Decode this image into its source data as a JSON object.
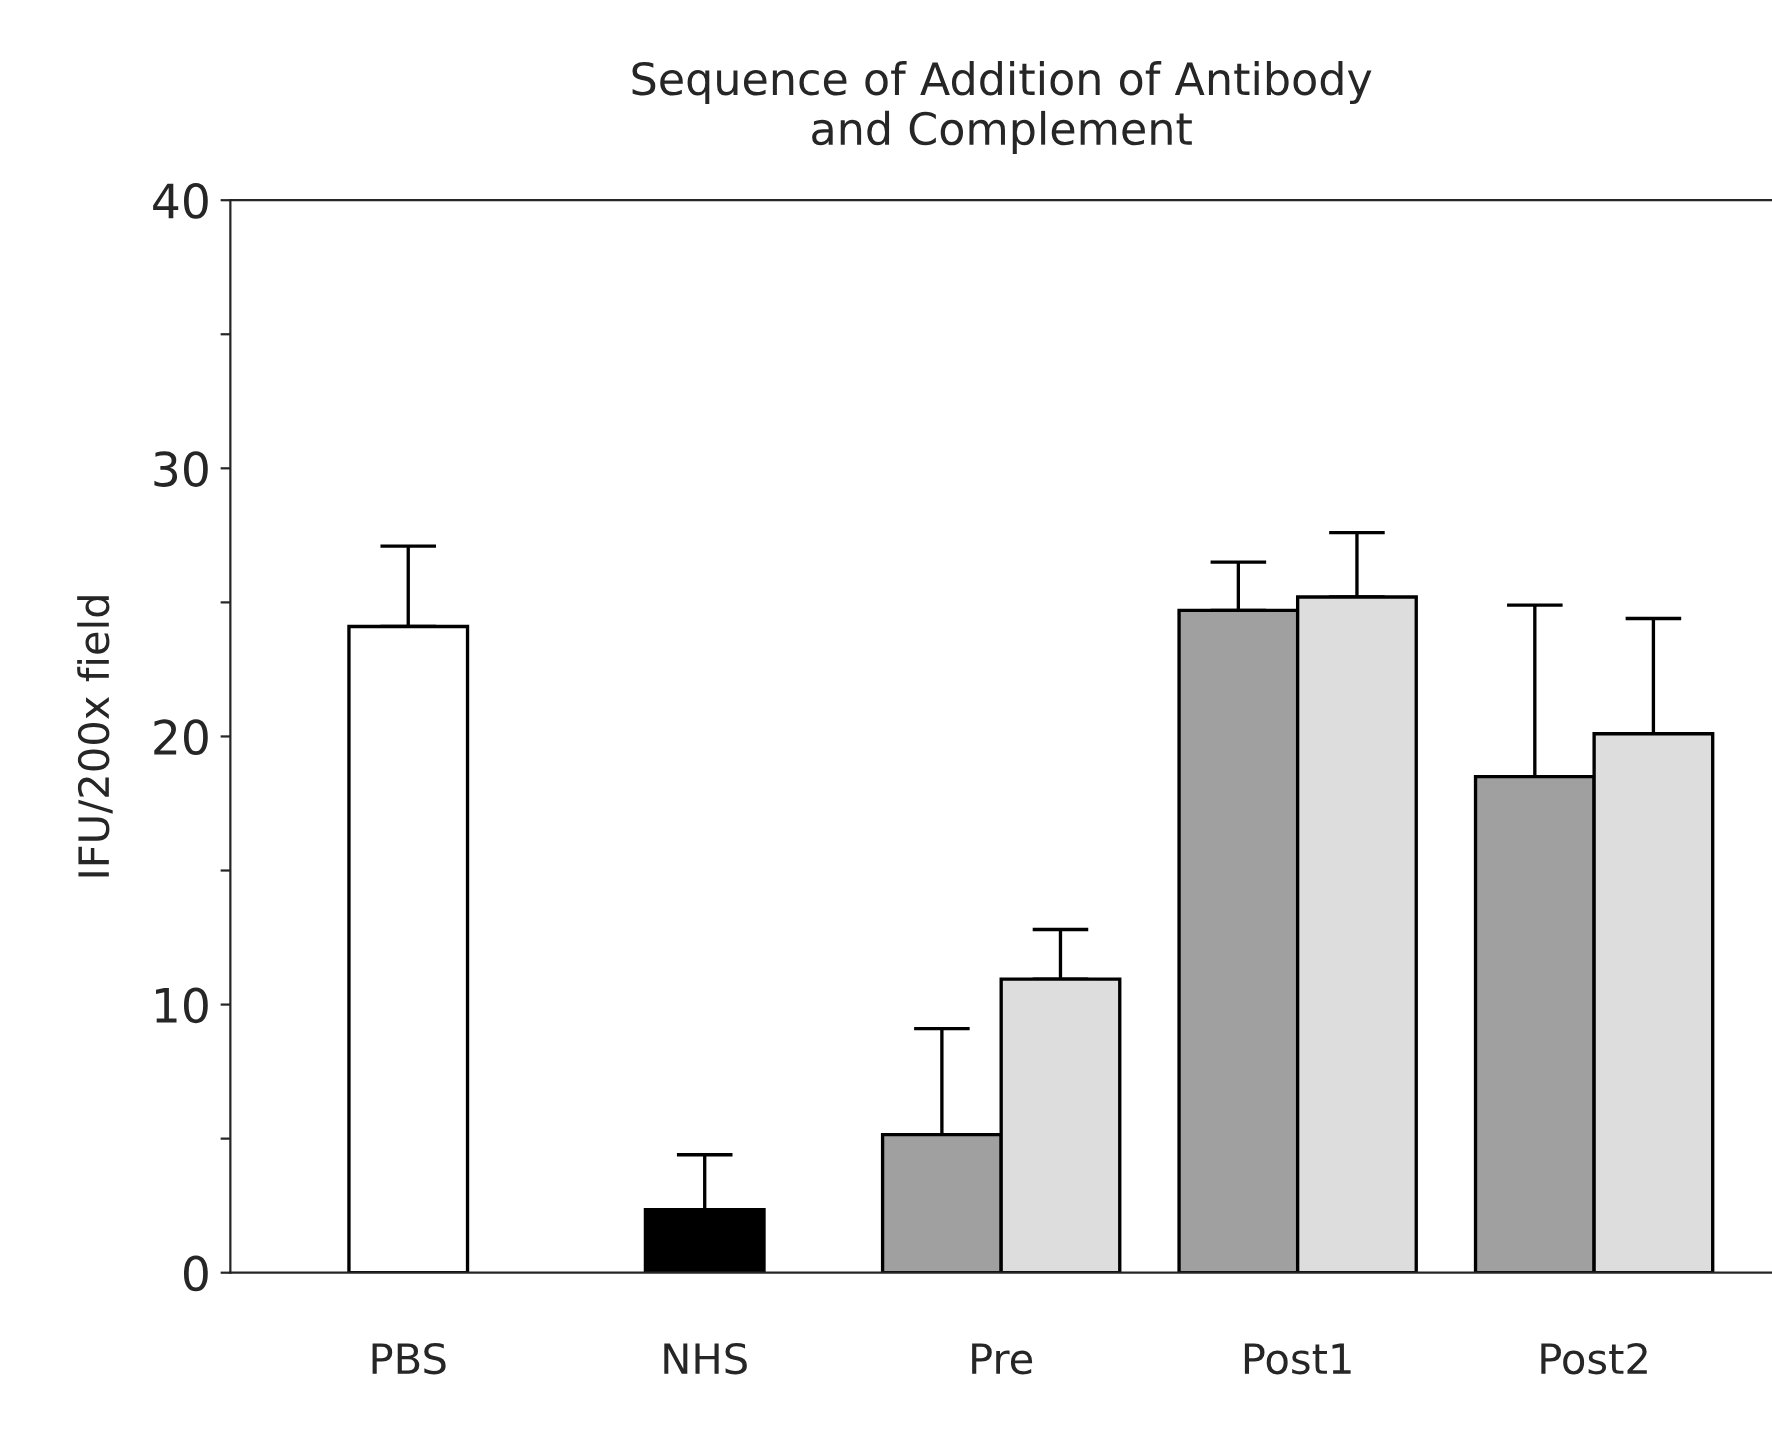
{
  "chart_data": {
    "type": "bar",
    "title": "Sequence of Addition of Antibody\nand Complement",
    "ylabel": "IFU/200x field",
    "categories": [
      "PBS",
      "NHS",
      "Pre",
      "Post1",
      "Post2"
    ],
    "series": [
      {
        "colors": [
          "#ffffff",
          "#000000",
          "#a0a0a0",
          "#a0a0a0",
          "#a0a0a0"
        ],
        "values": [
          24.1,
          2.35,
          5.15,
          24.7,
          18.5
        ],
        "errors": [
          [
            24.1,
            27.1
          ],
          [
            2.35,
            4.4
          ],
          [
            5.15,
            9.1
          ],
          [
            24.7,
            26.5
          ],
          [
            18.5,
            24.9
          ]
        ]
      },
      {
        "color": "#dddddd",
        "values": [
          null,
          null,
          10.95,
          25.2,
          20.1
        ],
        "errors": [
          null,
          null,
          [
            10.95,
            12.8
          ],
          [
            25.2,
            27.6
          ],
          [
            20.1,
            24.4
          ]
        ]
      }
    ],
    "ylim": [
      0,
      40
    ],
    "yticks": [
      0,
      {
        "value": 5,
        "label": null
      },
      10,
      {
        "value": 15,
        "label": null
      },
      20,
      {
        "value": 25,
        "label": null
      },
      30,
      {
        "value": 35,
        "label": null
      },
      40
    ],
    "grid": false,
    "legend": false
  }
}
